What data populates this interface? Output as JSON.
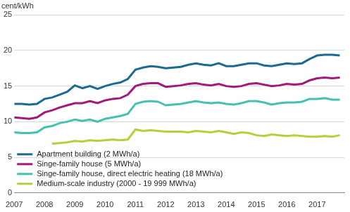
{
  "chart_data": {
    "type": "line",
    "ylabel": "cent/kWh",
    "x": [
      2007,
      2007.25,
      2007.5,
      2007.75,
      2008,
      2008.25,
      2008.5,
      2008.75,
      2009,
      2009.25,
      2009.5,
      2009.75,
      2010,
      2010.25,
      2010.5,
      2010.75,
      2011,
      2011.25,
      2011.5,
      2011.75,
      2012,
      2012.25,
      2012.5,
      2012.75,
      2013,
      2013.25,
      2013.5,
      2013.75,
      2014,
      2014.25,
      2014.5,
      2014.75,
      2015,
      2015.25,
      2015.5,
      2015.75,
      2016,
      2016.25,
      2016.5,
      2016.75,
      2017,
      2017.25,
      2017.5,
      2017.75
    ],
    "series": [
      {
        "name": "Apartment building (2 MWh/a)",
        "color": "#1b6b90",
        "values": [
          12.5,
          12.5,
          12.4,
          12.5,
          13.2,
          13.4,
          13.8,
          14.2,
          15.1,
          14.7,
          15.0,
          14.6,
          15.0,
          15.3,
          15.5,
          16.0,
          17.3,
          17.6,
          17.8,
          17.7,
          17.5,
          17.6,
          17.7,
          18.0,
          18.2,
          18.0,
          17.9,
          18.2,
          17.8,
          17.8,
          18.0,
          18.2,
          18.2,
          17.9,
          17.8,
          18.0,
          18.2,
          18.1,
          18.2,
          18.8,
          19.3,
          19.4,
          19.4,
          19.3
        ]
      },
      {
        "name": "Singe-family house (5 MWh/a)",
        "color": "#a3187a",
        "values": [
          10.6,
          10.5,
          10.4,
          10.6,
          11.3,
          11.6,
          12.0,
          12.3,
          12.6,
          12.6,
          12.9,
          12.6,
          13.0,
          13.2,
          13.3,
          13.8,
          15.0,
          15.3,
          15.4,
          15.4,
          14.9,
          15.0,
          15.1,
          15.3,
          15.4,
          15.2,
          15.1,
          15.3,
          15.0,
          14.9,
          15.0,
          15.3,
          15.4,
          15.2,
          15.0,
          15.1,
          15.3,
          15.2,
          15.3,
          15.8,
          16.1,
          16.2,
          16.1,
          16.2
        ]
      },
      {
        "name": "Singe-family house, direct electric heating (18 MWh/a)",
        "color": "#45c0b3",
        "values": [
          8.5,
          8.4,
          8.4,
          8.5,
          9.2,
          9.4,
          9.8,
          10.0,
          10.3,
          10.1,
          10.3,
          10.0,
          10.4,
          10.6,
          10.8,
          11.1,
          12.5,
          12.8,
          12.9,
          12.8,
          12.3,
          12.4,
          12.5,
          12.7,
          12.9,
          12.7,
          12.6,
          12.7,
          12.5,
          12.4,
          12.6,
          12.9,
          12.9,
          12.7,
          12.4,
          12.6,
          12.7,
          12.7,
          12.8,
          13.2,
          13.2,
          13.3,
          13.1,
          13.1
        ]
      },
      {
        "name": "Medium-scale industry (2000 - 19 999 MWh/a)",
        "color": "#b8cf3a",
        "values": [
          null,
          null,
          null,
          null,
          null,
          6.9,
          7.0,
          7.1,
          7.3,
          7.2,
          7.4,
          7.3,
          7.4,
          7.5,
          7.4,
          7.5,
          8.9,
          8.7,
          8.8,
          8.7,
          8.6,
          8.6,
          8.6,
          8.5,
          8.7,
          8.6,
          8.5,
          8.7,
          8.5,
          8.3,
          8.5,
          8.4,
          8.1,
          8.0,
          8.2,
          8.1,
          8.0,
          8.1,
          8.0,
          7.9,
          7.9,
          8.0,
          7.9,
          8.1
        ]
      }
    ],
    "xlim": [
      2007,
      2017.9
    ],
    "xticks": [
      2007,
      2008,
      2009,
      2010,
      2011,
      2012,
      2013,
      2014,
      2015,
      2016,
      2017
    ],
    "ylim": [
      0,
      25
    ],
    "yticks": [
      0,
      5,
      10,
      15,
      20,
      25
    ],
    "grid": true,
    "legend": "lower left"
  }
}
